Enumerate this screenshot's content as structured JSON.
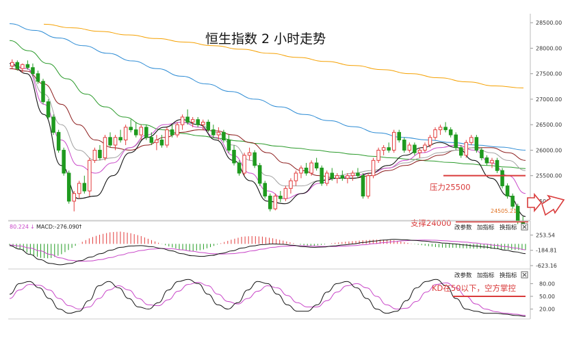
{
  "chart_data": {
    "type": "candlestick",
    "title": "恒生指数 2 小时走势",
    "price_axis": {
      "ticks": [
        "28500.00",
        "28000.00",
        "27500.00",
        "27000.00",
        "26500.00",
        "26000.00",
        "25500.00",
        "25000.00"
      ],
      "range": [
        24650,
        28650
      ]
    },
    "last_price_label": "24505.21",
    "candles": [
      [
        27650,
        27780,
        27600,
        27720
      ],
      [
        27720,
        27760,
        27560,
        27600
      ],
      [
        27600,
        27700,
        27520,
        27680
      ],
      [
        27680,
        27760,
        27580,
        27620
      ],
      [
        27620,
        27700,
        27450,
        27500
      ],
      [
        27500,
        27560,
        27300,
        27350
      ],
      [
        27350,
        27400,
        26900,
        26950
      ],
      [
        26950,
        27000,
        26600,
        26650
      ],
      [
        26650,
        26700,
        26300,
        26350
      ],
      [
        26350,
        26400,
        25950,
        26000
      ],
      [
        26000,
        26050,
        25500,
        25550
      ],
      [
        25550,
        25600,
        24950,
        25000
      ],
      [
        25000,
        25200,
        24800,
        25150
      ],
      [
        25150,
        25400,
        25050,
        25350
      ],
      [
        25350,
        25500,
        25150,
        25200
      ],
      [
        25200,
        25850,
        25100,
        25800
      ],
      [
        25800,
        26050,
        25750,
        26000
      ],
      [
        26000,
        26100,
        25800,
        25850
      ],
      [
        25850,
        26300,
        25800,
        26250
      ],
      [
        26250,
        26350,
        26050,
        26100
      ],
      [
        26100,
        26300,
        26000,
        26250
      ],
      [
        26250,
        26400,
        26150,
        26200
      ],
      [
        26200,
        26500,
        26100,
        26450
      ],
      [
        26450,
        26600,
        26350,
        26400
      ],
      [
        26400,
        26550,
        26250,
        26300
      ],
      [
        26300,
        26500,
        26200,
        26450
      ],
      [
        26450,
        26500,
        26200,
        26250
      ],
      [
        26250,
        26350,
        26100,
        26150
      ],
      [
        26150,
        26300,
        26000,
        26200
      ],
      [
        26200,
        26300,
        26050,
        26100
      ],
      [
        26100,
        26450,
        26050,
        26400
      ],
      [
        26400,
        26500,
        26250,
        26300
      ],
      [
        26300,
        26550,
        26250,
        26500
      ],
      [
        26500,
        26700,
        26400,
        26650
      ],
      [
        26650,
        26800,
        26500,
        26550
      ],
      [
        26550,
        26650,
        26450,
        26600
      ],
      [
        26600,
        26650,
        26450,
        26500
      ],
      [
        26500,
        26600,
        26400,
        26550
      ],
      [
        26550,
        26600,
        26350,
        26400
      ],
      [
        26400,
        26500,
        26250,
        26300
      ],
      [
        26300,
        26450,
        26200,
        26350
      ],
      [
        26350,
        26400,
        26150,
        26200
      ],
      [
        26200,
        26300,
        25950,
        26000
      ],
      [
        26000,
        26100,
        25700,
        25750
      ],
      [
        25750,
        25800,
        25500,
        25550
      ],
      [
        25550,
        25950,
        25500,
        25900
      ],
      [
        25900,
        26050,
        25800,
        25950
      ],
      [
        25950,
        26000,
        25650,
        25700
      ],
      [
        25700,
        25750,
        25300,
        25350
      ],
      [
        25350,
        25400,
        25050,
        25100
      ],
      [
        25100,
        25150,
        24800,
        24850
      ],
      [
        24850,
        25150,
        24820,
        25100
      ],
      [
        25100,
        25200,
        24980,
        25050
      ],
      [
        25050,
        25300,
        25000,
        25250
      ],
      [
        25250,
        25450,
        25150,
        25400
      ],
      [
        25400,
        25600,
        25300,
        25550
      ],
      [
        25550,
        25700,
        25450,
        25650
      ],
      [
        25650,
        25750,
        25500,
        25550
      ],
      [
        25550,
        25800,
        25500,
        25750
      ],
      [
        25750,
        25850,
        25600,
        25650
      ],
      [
        25650,
        25700,
        25300,
        25350
      ],
      [
        25350,
        25600,
        25300,
        25550
      ],
      [
        25550,
        25650,
        25400,
        25450
      ],
      [
        25450,
        25550,
        25350,
        25500
      ],
      [
        25500,
        25600,
        25400,
        25450
      ],
      [
        25450,
        25550,
        25350,
        25500
      ],
      [
        25500,
        25600,
        25400,
        25550
      ],
      [
        25550,
        25650,
        25450,
        25500
      ],
      [
        25500,
        25550,
        25050,
        25100
      ],
      [
        25100,
        25550,
        25050,
        25500
      ],
      [
        25500,
        25850,
        25450,
        25800
      ],
      [
        25800,
        26050,
        25750,
        26000
      ],
      [
        26000,
        26100,
        25900,
        26050
      ],
      [
        26050,
        26150,
        25950,
        26000
      ],
      [
        26000,
        26400,
        25950,
        26350
      ],
      [
        26350,
        26400,
        26150,
        26200
      ],
      [
        26200,
        26250,
        25950,
        26000
      ],
      [
        26000,
        26150,
        25950,
        26100
      ],
      [
        26100,
        26150,
        25900,
        25950
      ],
      [
        25950,
        26050,
        25850,
        26000
      ],
      [
        26000,
        26150,
        25950,
        26100
      ],
      [
        26100,
        26300,
        26050,
        26250
      ],
      [
        26250,
        26450,
        26200,
        26400
      ],
      [
        26400,
        26500,
        26300,
        26450
      ],
      [
        26450,
        26550,
        26350,
        26400
      ],
      [
        26400,
        26450,
        26250,
        26300
      ],
      [
        26300,
        26350,
        26000,
        26050
      ],
      [
        26050,
        26100,
        25850,
        25900
      ],
      [
        25900,
        26200,
        25850,
        26150
      ],
      [
        26150,
        26300,
        26100,
        26250
      ],
      [
        26250,
        26300,
        25950,
        26000
      ],
      [
        26000,
        26050,
        25800,
        25850
      ],
      [
        25850,
        25900,
        25700,
        25750
      ],
      [
        25750,
        25850,
        25650,
        25800
      ],
      [
        25800,
        25850,
        25550,
        25600
      ],
      [
        25600,
        25650,
        25250,
        25300
      ],
      [
        25300,
        25350,
        25050,
        25100
      ],
      [
        25100,
        25150,
        24850,
        24900
      ],
      [
        24900,
        24950,
        24550,
        24600
      ],
      [
        24600,
        24700,
        24450,
        24505
      ]
    ],
    "ma_lines": [
      {
        "color": "#f5a000",
        "values": [
          28470,
          28400,
          28330,
          28260,
          28190,
          28120,
          28050,
          27980,
          27900,
          27820,
          27740,
          27660,
          27580,
          27500,
          27420,
          27340,
          27260,
          27220
        ]
      },
      {
        "color": "#2a8ad4",
        "values": [
          28480,
          28350,
          28200,
          28050,
          27900,
          27750,
          27600,
          27450,
          27300,
          27150,
          27000,
          26850,
          26700,
          26580,
          26460,
          26340,
          26250,
          26200,
          26150,
          26100,
          26060,
          26000
        ]
      },
      {
        "color": "#2a9a2a",
        "values": [
          28150,
          27950,
          27700,
          27400,
          27100,
          26850,
          26650,
          26500,
          26400,
          26330,
          26280,
          26230,
          26180,
          26130,
          26080,
          26040,
          26000,
          25960,
          25920,
          25880,
          25850,
          25820,
          25790,
          25760,
          25730,
          25700,
          25670,
          25640
        ]
      },
      {
        "color": "#8b1a1a",
        "values": [
          27600,
          27550,
          27300,
          26900,
          26500,
          26200,
          26050,
          26000,
          26100,
          26250,
          26350,
          26400,
          26380,
          26300,
          26150,
          25950,
          25750,
          25600,
          25500,
          25450,
          25450,
          25500,
          25600,
          25700,
          25800,
          25900,
          26000,
          26050,
          26050,
          25950,
          25800
        ]
      },
      {
        "color": "#a0a0a0",
        "values": [
          27650,
          27600,
          27100,
          26500,
          26000,
          25800,
          25850,
          26050,
          26250,
          26450,
          26550,
          26500,
          26350,
          26100,
          25800,
          25500,
          25300,
          25300,
          25400,
          25500,
          25550,
          25600,
          25650,
          25750,
          25850,
          25950,
          26000,
          26050,
          25950,
          25800,
          25600
        ]
      },
      {
        "color": "#c846c8",
        "values": [
          27700,
          27600,
          26900,
          26200,
          25700,
          25550,
          25750,
          26050,
          26300,
          26500,
          26550,
          26450,
          26250,
          25900,
          25550,
          25200,
          25050,
          25150,
          25350,
          25450,
          25500,
          25550,
          25650,
          25800,
          25950,
          26050,
          26100,
          26000,
          25750,
          25500,
          25150
        ]
      },
      {
        "color": "#111111",
        "values": [
          27700,
          27500,
          26700,
          25700,
          25050,
          25100,
          25500,
          25950,
          26250,
          26450,
          26600,
          26500,
          26200,
          25800,
          25400,
          25000,
          24950,
          25150,
          25400,
          25450,
          25450,
          25550,
          25700,
          25900,
          26050,
          26150,
          26050,
          25800,
          25450,
          25100,
          24700
        ]
      }
    ],
    "macd": {
      "header": [
        "80.224",
        "↓",
        "MACD:-276.090",
        "↑"
      ],
      "ticks": [
        "253.54",
        "-184.81",
        "-623.16"
      ],
      "range": [
        -700,
        320
      ],
      "dif": [
        -50,
        -150,
        -300,
        -450,
        -560,
        -600,
        -560,
        -480,
        -380,
        -280,
        -180,
        -100,
        -60,
        -50,
        -80,
        -130,
        -200,
        -280,
        -340,
        -360,
        -330,
        -270,
        -200,
        -120,
        -60,
        -20,
        0,
        -10,
        -40,
        -80,
        -100,
        -90,
        -60,
        -30,
        0,
        40,
        80,
        110,
        130,
        120,
        100,
        80,
        50,
        20,
        0,
        -30,
        -60,
        -90,
        -130,
        -180,
        -230,
        -280
      ],
      "dea": [
        -30,
        -60,
        -120,
        -200,
        -300,
        -400,
        -470,
        -500,
        -490,
        -450,
        -390,
        -320,
        -250,
        -190,
        -150,
        -130,
        -140,
        -170,
        -210,
        -250,
        -280,
        -290,
        -280,
        -250,
        -200,
        -150,
        -100,
        -70,
        -55,
        -55,
        -65,
        -75,
        -75,
        -65,
        -50,
        -25,
        5,
        35,
        65,
        90,
        105,
        110,
        105,
        90,
        70,
        50,
        25,
        -5,
        -40,
        -80,
        -120,
        -170
      ],
      "header_buttons": [
        "改参数",
        "加指标",
        "换指标"
      ]
    },
    "kd": {
      "ticks": [
        "80.00",
        "50.00",
        "20.00"
      ],
      "range": [
        0,
        100
      ],
      "k": [
        55,
        80,
        85,
        70,
        45,
        20,
        10,
        15,
        40,
        75,
        85,
        70,
        45,
        25,
        20,
        35,
        65,
        85,
        90,
        80,
        55,
        30,
        20,
        35,
        65,
        85,
        80,
        55,
        30,
        15,
        15,
        30,
        60,
        80,
        85,
        70,
        45,
        20,
        10,
        15,
        40,
        70,
        85,
        90,
        75,
        45,
        20,
        15,
        10,
        10,
        8,
        5,
        3
      ],
      "d": [
        45,
        65,
        78,
        76,
        65,
        45,
        28,
        20,
        25,
        45,
        65,
        75,
        65,
        45,
        30,
        28,
        42,
        62,
        78,
        83,
        75,
        55,
        38,
        32,
        45,
        62,
        75,
        70,
        52,
        35,
        25,
        25,
        40,
        60,
        75,
        80,
        70,
        50,
        30,
        20,
        22,
        38,
        60,
        78,
        82,
        70,
        50,
        32,
        20,
        14,
        10,
        8,
        5
      ],
      "header_buttons": [
        "改参数",
        "加指标",
        "换指标"
      ]
    },
    "annotations": {
      "resistance_text": "压力25500",
      "resistance_value": 25500,
      "support_text": "支撑24000",
      "kd_text": "KD在50以下，空方掌控",
      "kd_level": 50
    }
  }
}
